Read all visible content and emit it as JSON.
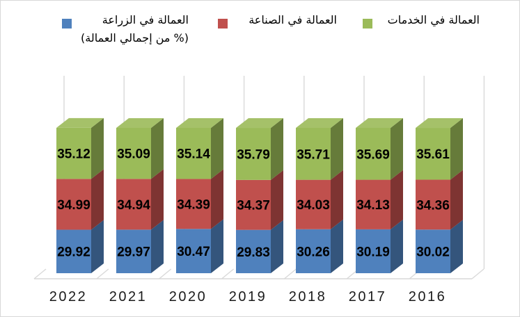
{
  "legend": {
    "entries": [
      {
        "label": "العمالة في الزراعة",
        "note": "(% من إجمالي العمالة)",
        "color": "#4F81BD"
      },
      {
        "label": "العمالة في الصناعة",
        "color": "#C0504D"
      },
      {
        "label": "العمالة في الخدمات",
        "color": "#9BBB59"
      }
    ]
  },
  "chart_data": {
    "type": "bar",
    "stacked": true,
    "effect": "3d",
    "title": "",
    "unit_note": "(% من إجمالي العمالة)",
    "categories": [
      "2022",
      "2021",
      "2020",
      "2019",
      "2018",
      "2017",
      "2016"
    ],
    "series": [
      {
        "name": "العمالة في الزراعة (% من إجمالي العمالة)",
        "color": "#4F81BD",
        "values": [
          29.92,
          29.97,
          30.47,
          29.83,
          30.26,
          30.19,
          30.02
        ]
      },
      {
        "name": "العمالة في الصناعة",
        "color": "#C0504D",
        "values": [
          34.99,
          34.94,
          34.39,
          34.37,
          34.03,
          34.13,
          34.36
        ]
      },
      {
        "name": "العمالة في الخدمات",
        "color": "#9BBB59",
        "values": [
          35.12,
          35.09,
          35.14,
          35.79,
          35.71,
          35.69,
          35.61
        ]
      }
    ],
    "value_labels": true,
    "ylim": [
      0,
      100
    ],
    "axis_visible": false,
    "wall_gridline_color": "#D9D9D9",
    "label_color": "#000000",
    "category_label_color": "#1a1a1a"
  }
}
